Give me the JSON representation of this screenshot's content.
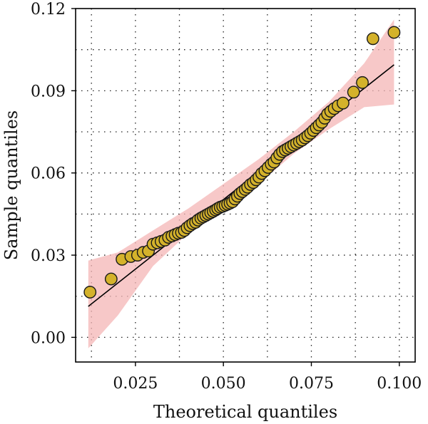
{
  "chart_data": {
    "type": "scatter",
    "title": "",
    "xlabel": "Theoretical quantiles",
    "ylabel": "Sample quantiles",
    "xlim": [
      0.008,
      0.1045
    ],
    "ylim": [
      -0.009,
      0.12
    ],
    "x_ticks": [
      0.025,
      0.05,
      0.075,
      0.1
    ],
    "x_tick_labels": [
      "0.025",
      "0.050",
      "0.075",
      "0.100"
    ],
    "y_ticks": [
      0.0,
      0.03,
      0.06,
      0.09,
      0.12
    ],
    "y_tick_labels": [
      "0.00",
      "0.03",
      "0.06",
      "0.09",
      "0.12"
    ],
    "grid": true,
    "reference_line": {
      "x": [
        0.0116,
        0.0985
      ],
      "y": [
        0.0113,
        0.0995
      ]
    },
    "confidence_band": {
      "x": [
        0.0116,
        0.02,
        0.03,
        0.04,
        0.05,
        0.06,
        0.07,
        0.08,
        0.09,
        0.0985
      ],
      "upper": [
        0.028,
        0.031,
        0.039,
        0.047,
        0.056,
        0.065,
        0.075,
        0.086,
        0.1,
        0.116
      ],
      "lower": [
        -0.004,
        0.008,
        0.026,
        0.038,
        0.047,
        0.056,
        0.067,
        0.076,
        0.084,
        0.085
      ]
    },
    "series": [
      {
        "points": [
          [
            0.0121,
            0.0165
          ],
          [
            0.0181,
            0.0213
          ],
          [
            0.0212,
            0.0285
          ],
          [
            0.0237,
            0.0295
          ],
          [
            0.0256,
            0.03
          ],
          [
            0.0272,
            0.031
          ],
          [
            0.0287,
            0.0315
          ],
          [
            0.03,
            0.034
          ],
          [
            0.0312,
            0.0345
          ],
          [
            0.0323,
            0.035
          ],
          [
            0.0334,
            0.0355
          ],
          [
            0.0344,
            0.0365
          ],
          [
            0.0354,
            0.037
          ],
          [
            0.0363,
            0.0375
          ],
          [
            0.0372,
            0.038
          ],
          [
            0.0381,
            0.0383
          ],
          [
            0.0389,
            0.039
          ],
          [
            0.0397,
            0.04
          ],
          [
            0.0405,
            0.0408
          ],
          [
            0.0413,
            0.0415
          ],
          [
            0.0421,
            0.042
          ],
          [
            0.0428,
            0.0428
          ],
          [
            0.0436,
            0.0435
          ],
          [
            0.0443,
            0.044
          ],
          [
            0.045,
            0.0445
          ],
          [
            0.0457,
            0.045
          ],
          [
            0.0464,
            0.0455
          ],
          [
            0.0471,
            0.046
          ],
          [
            0.0478,
            0.0465
          ],
          [
            0.0484,
            0.047
          ],
          [
            0.0491,
            0.0475
          ],
          [
            0.0498,
            0.0478
          ],
          [
            0.0505,
            0.0482
          ],
          [
            0.0512,
            0.0486
          ],
          [
            0.0519,
            0.049
          ],
          [
            0.0526,
            0.0495
          ],
          [
            0.0533,
            0.0505
          ],
          [
            0.054,
            0.0515
          ],
          [
            0.0547,
            0.0525
          ],
          [
            0.0554,
            0.0532
          ],
          [
            0.0562,
            0.054
          ],
          [
            0.0569,
            0.0548
          ],
          [
            0.0577,
            0.0558
          ],
          [
            0.0585,
            0.0565
          ],
          [
            0.0593,
            0.0575
          ],
          [
            0.0601,
            0.0585
          ],
          [
            0.0609,
            0.0598
          ],
          [
            0.0618,
            0.0608
          ],
          [
            0.0627,
            0.062
          ],
          [
            0.0636,
            0.0632
          ],
          [
            0.0644,
            0.064
          ],
          [
            0.0652,
            0.0655
          ],
          [
            0.066,
            0.0668
          ],
          [
            0.0668,
            0.0678
          ],
          [
            0.0676,
            0.0684
          ],
          [
            0.0684,
            0.069
          ],
          [
            0.0692,
            0.0696
          ],
          [
            0.07,
            0.0702
          ],
          [
            0.0708,
            0.0708
          ],
          [
            0.0716,
            0.0714
          ],
          [
            0.0724,
            0.072
          ],
          [
            0.0732,
            0.0728
          ],
          [
            0.074,
            0.0736
          ],
          [
            0.0748,
            0.0745
          ],
          [
            0.0756,
            0.0755
          ],
          [
            0.0764,
            0.0765
          ],
          [
            0.0772,
            0.0775
          ],
          [
            0.078,
            0.0785
          ],
          [
            0.0788,
            0.08
          ],
          [
            0.0796,
            0.0815
          ],
          [
            0.0805,
            0.0825
          ],
          [
            0.0815,
            0.0835
          ],
          [
            0.0826,
            0.0845
          ],
          [
            0.084,
            0.0855
          ],
          [
            0.087,
            0.0895
          ],
          [
            0.0895,
            0.093
          ],
          [
            0.0925,
            0.109
          ],
          [
            0.0985,
            0.1113
          ]
        ]
      }
    ]
  }
}
